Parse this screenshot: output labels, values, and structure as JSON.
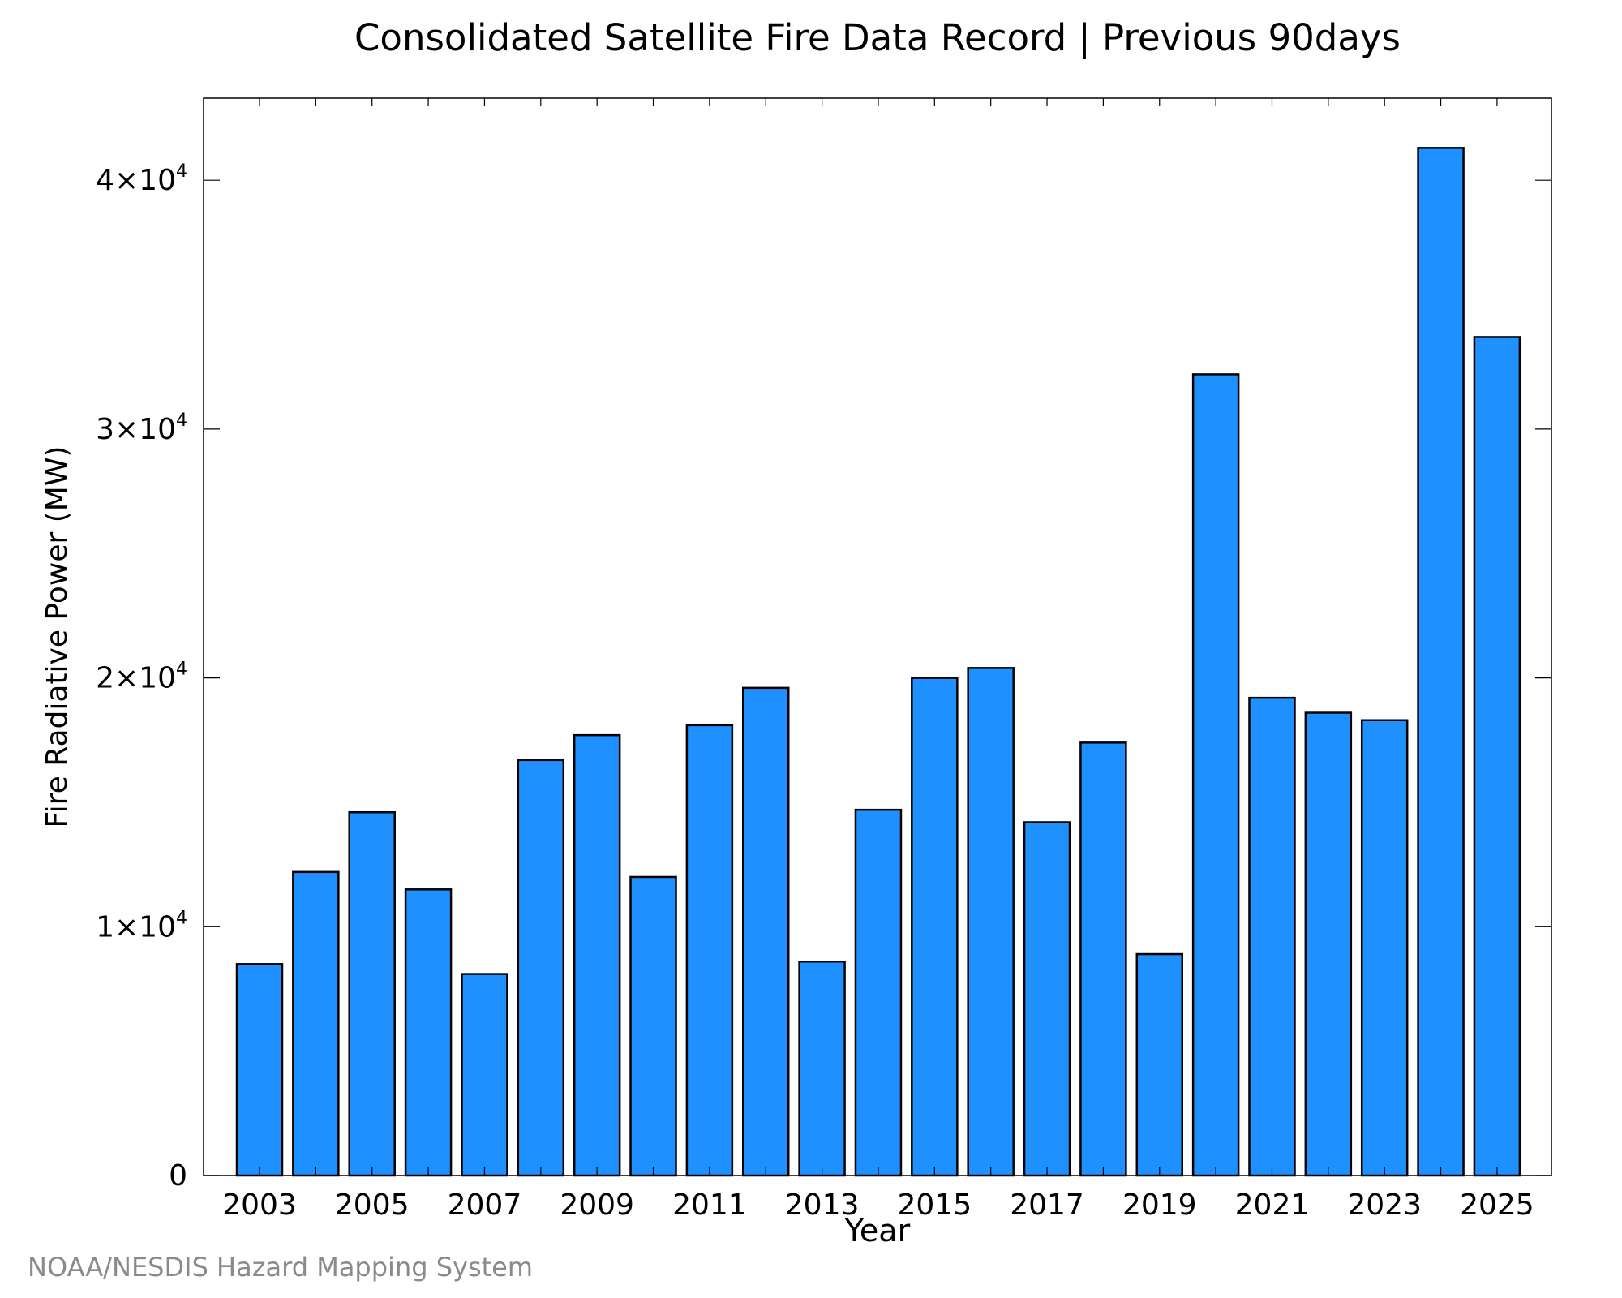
{
  "chart_data": {
    "type": "bar",
    "title": "Consolidated Satellite Fire Data Record | Previous 90days",
    "xlabel": "Year",
    "ylabel": "Fire Radiative Power (MW)",
    "categories": [
      "2003",
      "2004",
      "2005",
      "2006",
      "2007",
      "2008",
      "2009",
      "2010",
      "2011",
      "2012",
      "2013",
      "2014",
      "2015",
      "2016",
      "2017",
      "2018",
      "2019",
      "2020",
      "2021",
      "2022",
      "2023",
      "2024",
      "2025"
    ],
    "values": [
      8500,
      12200,
      14600,
      11500,
      8100,
      16700,
      17700,
      12000,
      18100,
      19600,
      8600,
      14700,
      20000,
      20400,
      14200,
      17400,
      8900,
      32200,
      19200,
      18600,
      18300,
      41300,
      33700
    ],
    "x_tick_labels": [
      "2003",
      "2005",
      "2007",
      "2009",
      "2011",
      "2013",
      "2015",
      "2017",
      "2019",
      "2021",
      "2023",
      "2025"
    ],
    "ylim": [
      0,
      43300
    ],
    "y_ticks": [
      {
        "value": 0,
        "label": "0",
        "mantissa": "",
        "exponent": ""
      },
      {
        "value": 10000,
        "label": "",
        "mantissa": "1×10",
        "exponent": "4"
      },
      {
        "value": 20000,
        "label": "",
        "mantissa": "2×10",
        "exponent": "4"
      },
      {
        "value": 30000,
        "label": "",
        "mantissa": "3×10",
        "exponent": "4"
      },
      {
        "value": 40000,
        "label": "",
        "mantissa": "4×10",
        "exponent": "4"
      }
    ],
    "bar_color": "#1e90ff",
    "bar_edge_color": "#000000",
    "grid": false,
    "legend": "none"
  },
  "footer": {
    "credit": "NOAA/NESDIS Hazard Mapping System"
  }
}
